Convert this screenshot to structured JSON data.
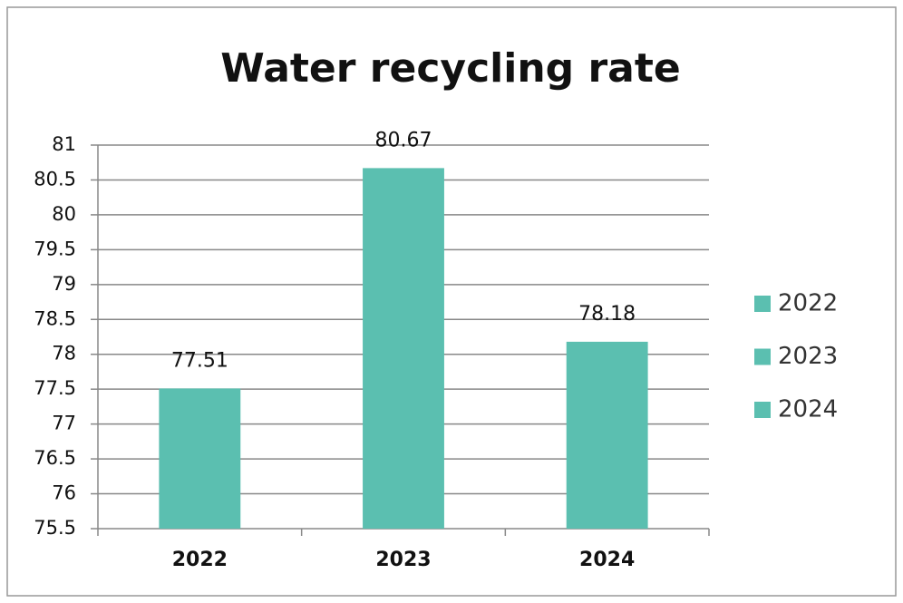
{
  "chart_data": {
    "type": "bar",
    "title": "Water recycling rate",
    "categories": [
      "2022",
      "2023",
      "2024"
    ],
    "values": [
      77.51,
      80.67,
      78.18
    ],
    "color": "#5bbfb0",
    "ylim": [
      75.5,
      81
    ],
    "yticks": [
      75.5,
      76,
      76.5,
      77,
      77.5,
      78,
      78.5,
      79,
      79.5,
      80,
      80.5,
      81
    ],
    "grid": true,
    "legend": "right"
  }
}
